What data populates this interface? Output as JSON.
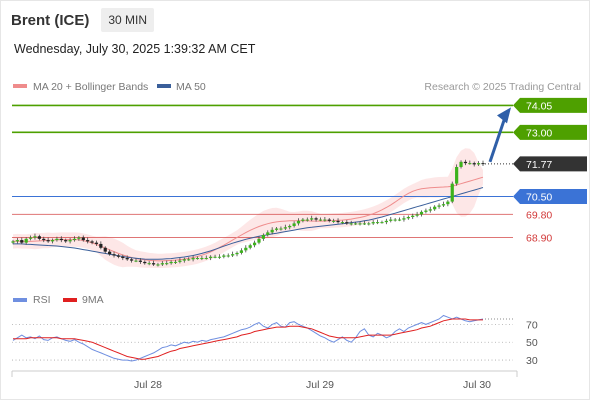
{
  "header": {
    "symbol": "Brent (ICE)",
    "timeframe": "30 MIN",
    "timestamp": "Wednesday, July 30, 2025 1:39:32 AM CET"
  },
  "colors": {
    "resistance": "#4ea000",
    "support": "#3b73d6",
    "pivot_red": "#d23a3a",
    "current": "#333333",
    "arrow": "#2f5fa8",
    "bollinger_fill": "#fde3e3",
    "ma20": "#ef8c8c",
    "ma50": "#3a5f9a",
    "rsi": "#6f8fe0",
    "rsi_ma": "#e02020",
    "candle_up": "#3cb21c",
    "candle_down": "#222222"
  },
  "chart_data": [
    {
      "type": "candlestick",
      "title": "",
      "legend": [
        "MA 20 + Bollinger Bands",
        "MA 50"
      ],
      "watermark": "Research © 2025 Trading Central",
      "x_ticks": [
        "Jul 28",
        "Jul 29",
        "Jul 30"
      ],
      "ylim": [
        67.4,
        74.3
      ],
      "closes": [
        68.75,
        68.8,
        68.7,
        68.85,
        68.9,
        68.95,
        68.85,
        68.8,
        68.75,
        68.8,
        68.85,
        68.8,
        68.75,
        68.8,
        68.85,
        68.9,
        68.8,
        68.75,
        68.7,
        68.65,
        68.5,
        68.35,
        68.25,
        68.2,
        68.15,
        68.1,
        68.05,
        68.0,
        68.0,
        67.95,
        67.9,
        67.9,
        67.85,
        67.85,
        67.9,
        67.9,
        67.95,
        67.95,
        68.0,
        68.05,
        68.05,
        68.1,
        68.1,
        68.1,
        68.1,
        68.15,
        68.15,
        68.15,
        68.2,
        68.2,
        68.25,
        68.3,
        68.4,
        68.5,
        68.6,
        68.7,
        68.85,
        69.0,
        69.1,
        69.2,
        69.25,
        69.25,
        69.3,
        69.35,
        69.45,
        69.55,
        69.6,
        69.6,
        69.65,
        69.6,
        69.6,
        69.6,
        69.55,
        69.55,
        69.5,
        69.5,
        69.45,
        69.45,
        69.45,
        69.45,
        69.45,
        69.45,
        69.5,
        69.5,
        69.5,
        69.55,
        69.6,
        69.6,
        69.6,
        69.65,
        69.7,
        69.75,
        69.8,
        69.9,
        69.95,
        70.0,
        70.1,
        70.15,
        70.2,
        70.3,
        71.0,
        71.65,
        71.85,
        71.8,
        71.8,
        71.75,
        71.8,
        71.77
      ],
      "moving_averages": [
        {
          "name": "MA 20",
          "values": [
            68.75,
            68.76,
            68.75,
            68.75,
            68.75,
            68.76,
            68.77,
            68.78,
            68.79,
            68.8,
            68.81,
            68.82,
            68.82,
            68.82,
            68.82,
            68.81,
            68.78,
            68.74,
            68.69,
            68.63,
            68.56,
            68.49,
            68.42,
            68.35,
            68.28,
            68.22,
            68.17,
            68.12,
            68.08,
            68.05,
            68.03,
            68.01,
            68.0,
            67.99,
            67.99,
            68.0,
            68.01,
            68.02,
            68.04,
            68.06,
            68.09,
            68.12,
            68.16,
            68.21,
            68.27,
            68.34,
            68.42,
            68.51,
            68.6,
            68.7,
            68.8,
            68.9,
            69.0,
            69.09,
            69.18,
            69.26,
            69.33,
            69.39,
            69.44,
            69.48,
            69.51,
            69.53,
            69.54,
            69.55,
            69.55,
            69.55,
            69.55,
            69.55,
            69.54,
            69.54,
            69.54,
            69.54,
            69.55,
            69.56,
            69.57,
            69.58,
            69.6,
            69.62,
            69.65,
            69.68,
            69.72,
            69.77,
            69.83,
            69.9,
            69.98,
            70.07,
            70.17,
            70.28,
            70.4,
            70.52,
            70.62,
            70.7,
            70.76,
            70.8,
            70.82,
            70.84,
            70.85,
            70.86,
            70.87,
            70.88,
            70.9,
            70.95,
            71.0,
            71.05,
            71.1,
            71.15,
            71.2,
            71.25
          ]
        },
        {
          "name": "MA 50",
          "values": [
            68.65,
            68.65,
            68.65,
            68.64,
            68.63,
            68.62,
            68.61,
            68.6,
            68.59,
            68.58,
            68.57,
            68.55,
            68.53,
            68.51,
            68.49,
            68.46,
            68.43,
            68.4,
            68.37,
            68.34,
            68.31,
            68.28,
            68.25,
            68.22,
            68.19,
            68.16,
            68.13,
            68.11,
            68.09,
            68.07,
            68.06,
            68.05,
            68.05,
            68.05,
            68.06,
            68.07,
            68.08,
            68.1,
            68.12,
            68.14,
            68.17,
            68.2,
            68.24,
            68.28,
            68.33,
            68.38,
            68.44,
            68.5,
            68.56,
            68.62,
            68.68,
            68.73,
            68.78,
            68.83,
            68.87,
            68.91,
            68.95,
            68.98,
            69.01,
            69.04,
            69.07,
            69.1,
            69.13,
            69.16,
            69.19,
            69.22,
            69.25,
            69.28,
            69.3,
            69.32,
            69.34,
            69.36,
            69.38,
            69.4,
            69.42,
            69.44,
            69.46,
            69.48,
            69.5,
            69.52,
            69.55,
            69.58,
            69.62,
            69.66,
            69.7,
            69.75,
            69.8,
            69.85,
            69.9,
            69.95,
            70.0,
            70.05,
            70.1,
            70.15,
            70.2,
            70.25,
            70.3,
            70.35,
            70.4,
            70.45,
            70.5,
            70.55,
            70.6,
            70.65,
            70.7,
            70.75,
            70.8,
            70.85
          ]
        }
      ],
      "levels": [
        {
          "value": 74.05,
          "label": "74.05",
          "kind": "resistance"
        },
        {
          "value": 73.0,
          "label": "73.00",
          "kind": "resistance"
        },
        {
          "value": 71.77,
          "label": "71.77",
          "kind": "current"
        },
        {
          "value": 70.5,
          "label": "70.50",
          "kind": "support"
        },
        {
          "value": 69.8,
          "label": "69.80",
          "kind": "pivot"
        },
        {
          "value": 68.9,
          "label": "68.90",
          "kind": "pivot"
        }
      ]
    },
    {
      "type": "line",
      "title": "",
      "legend": [
        "RSI",
        "9MA"
      ],
      "ylim": [
        20,
        85
      ],
      "y_ticks": [
        70,
        50,
        30
      ],
      "series": [
        {
          "name": "RSI",
          "values": [
            52,
            55,
            58,
            55,
            56,
            54,
            57,
            53,
            52,
            55,
            56,
            54,
            52,
            51,
            53,
            50,
            48,
            45,
            42,
            40,
            38,
            36,
            34,
            32,
            31,
            30,
            30,
            29,
            30,
            32,
            34,
            36,
            38,
            41,
            44,
            45,
            47,
            46,
            48,
            50,
            49,
            51,
            50,
            52,
            51,
            53,
            54,
            55,
            56,
            58,
            60,
            62,
            64,
            65,
            67,
            70,
            72,
            68,
            66,
            70,
            72,
            68,
            67,
            72,
            73,
            70,
            68,
            66,
            63,
            60,
            57,
            55,
            52,
            50,
            53,
            56,
            52,
            50,
            55,
            62,
            65,
            58,
            56,
            60,
            58,
            55,
            57,
            62,
            65,
            62,
            66,
            68,
            70,
            72,
            70,
            72,
            74,
            76,
            80,
            78,
            76,
            78,
            76,
            74,
            73,
            74,
            75,
            76
          ]
        },
        {
          "name": "9MA",
          "values": [
            54,
            54,
            54,
            54,
            55,
            55,
            55,
            55,
            55,
            55,
            55,
            54,
            54,
            54,
            54,
            53,
            52,
            51,
            50,
            48,
            46,
            44,
            42,
            40,
            38,
            36,
            34,
            33,
            32,
            31,
            31,
            32,
            33,
            34,
            36,
            38,
            40,
            41,
            43,
            44,
            45,
            46,
            47,
            48,
            49,
            50,
            51,
            52,
            53,
            54,
            55,
            56,
            58,
            59,
            60,
            62,
            63,
            64,
            65,
            66,
            67,
            67,
            67,
            68,
            68,
            68,
            67,
            66,
            65,
            63,
            61,
            59,
            57,
            56,
            55,
            55,
            55,
            55,
            55,
            56,
            57,
            58,
            58,
            58,
            58,
            58,
            58,
            59,
            60,
            61,
            62,
            63,
            64,
            66,
            67,
            68,
            70,
            72,
            74,
            75,
            76,
            76,
            76,
            76,
            75,
            75,
            75,
            75
          ]
        }
      ]
    }
  ]
}
